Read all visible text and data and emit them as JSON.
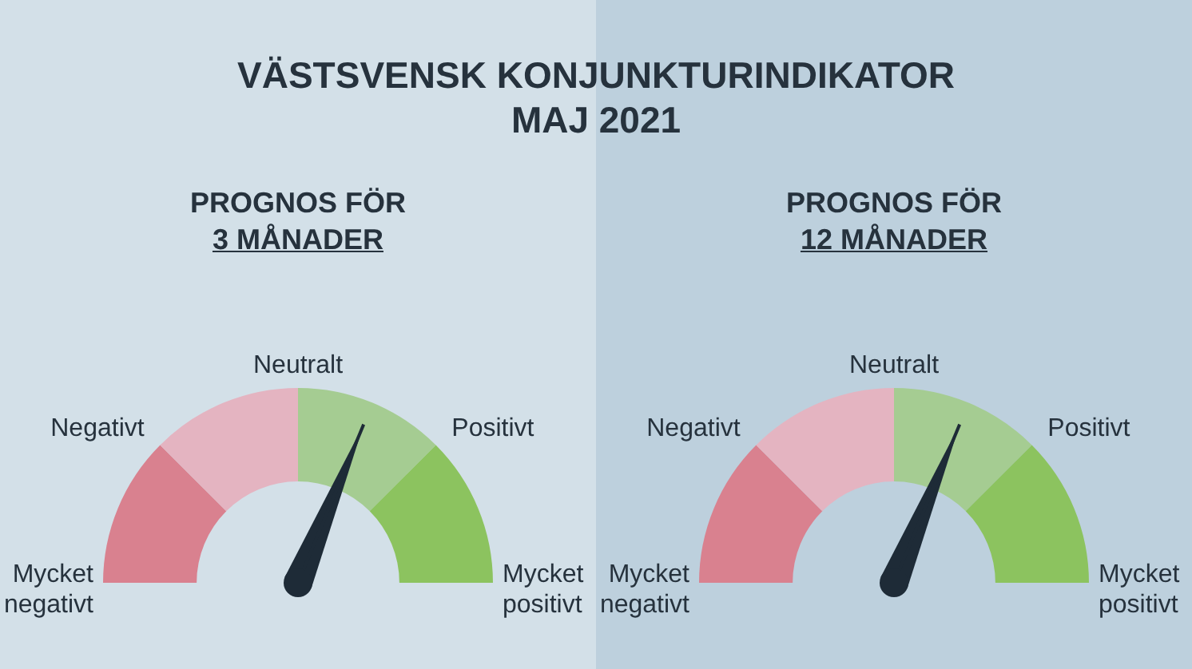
{
  "chart_data": [
    {
      "type": "donut",
      "title": "VÄSTSVENSK KONJUNKTURINDIKATOR\nMAJ 2021",
      "subtitle": "PROGNOS FÖR\n3 MÅNADER",
      "categories": [
        "Mycket\nnegativt",
        "Negativt",
        "Positivt",
        "Mycket\npositivt"
      ],
      "values": [
        25,
        25,
        25,
        25
      ],
      "colors": [
        "#d9818f",
        "#e4b4c1",
        "#a5cc92",
        "#8cc35f"
      ],
      "needle": "Positivt",
      "annotations": [
        "Neutralt"
      ]
    },
    {
      "type": "donut",
      "subtitle": "PROGNOS FÖR\n12 MÅNADER",
      "categories": [
        "Mycket\nnegativt",
        "Negativt",
        "Positivt",
        "Mycket\npositivt"
      ],
      "values": [
        25,
        25,
        25,
        25
      ],
      "colors": [
        "#d9818f",
        "#e4b4c1",
        "#a5cc92",
        "#8cc35f"
      ],
      "needle": "Positivt",
      "annotations": [
        "Neutralt"
      ]
    }
  ]
}
